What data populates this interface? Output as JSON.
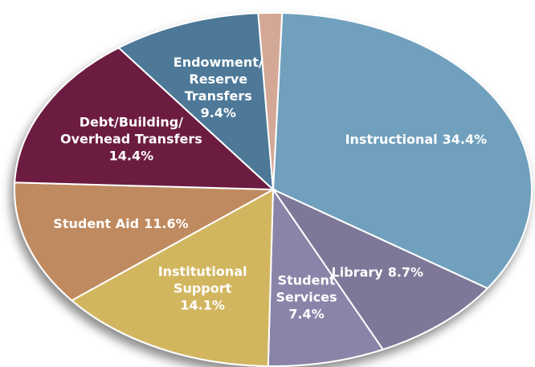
{
  "chart_data": {
    "type": "pie",
    "categories": [
      [
        "Instructional"
      ],
      [
        "Library"
      ],
      [
        "Student",
        "Services"
      ],
      [
        "Institutional",
        "Support"
      ],
      [
        "Student Aid"
      ],
      [
        "Debt/Building/",
        "Overhead Transfers"
      ],
      [
        "Endowment/",
        "Reserve",
        "Transfers"
      ],
      null
    ],
    "values": [
      34.4,
      8.7,
      7.4,
      14.1,
      11.6,
      14.4,
      9.4,
      1.5
    ],
    "value_labels": [
      "34.4%",
      "8.7%",
      "7.4%",
      "14.1%",
      "11.6%",
      "14.4%",
      "9.4%",
      null
    ],
    "colors": [
      "#6fa0bd",
      "#7e7898",
      "#8a84a8",
      "#d2b65e",
      "#bf8a5f",
      "#6c1f40",
      "#4d7898",
      "#d3a896"
    ]
  }
}
